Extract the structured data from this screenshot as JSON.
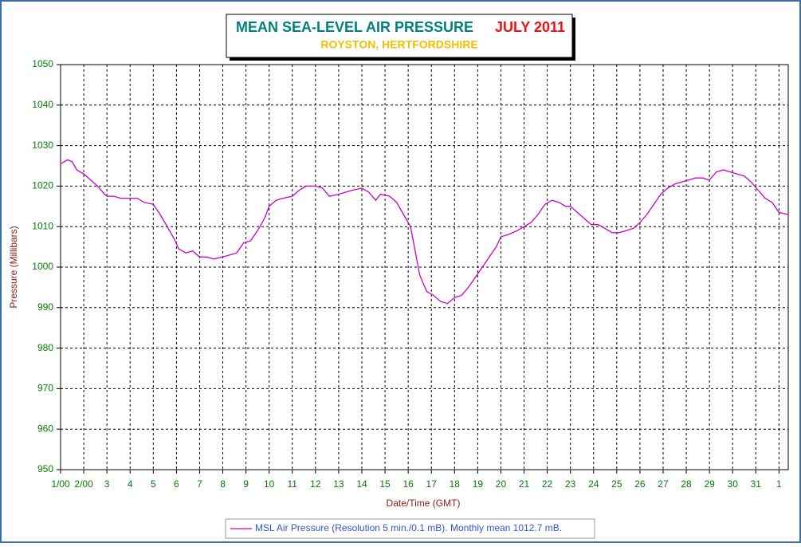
{
  "chart_data": {
    "type": "line",
    "title": "MEAN SEA-LEVEL AIR PRESSURE",
    "title_date": "JULY 2011",
    "subtitle": "ROYSTON, HERTFORDSHIRE",
    "xlabel": "Date/Time (GMT)",
    "ylabel": "Pressure (Millibars)",
    "xlim": [
      1,
      32.4
    ],
    "ylim": [
      950,
      1050
    ],
    "yticks": [
      950,
      960,
      970,
      980,
      990,
      1000,
      1010,
      1020,
      1030,
      1040,
      1050
    ],
    "xticks": [
      {
        "value": 1,
        "label": "1/00"
      },
      {
        "value": 2,
        "label": "2/00"
      },
      3,
      4,
      5,
      6,
      7,
      8,
      9,
      10,
      11,
      12,
      13,
      14,
      15,
      16,
      17,
      18,
      19,
      20,
      21,
      22,
      23,
      24,
      25,
      26,
      27,
      28,
      29,
      30,
      31,
      {
        "value": 32,
        "label": "1"
      }
    ],
    "grid": true,
    "legend": "bottom",
    "x": [
      1,
      1.3,
      1.5,
      1.7,
      2,
      2.3,
      2.6,
      2.9,
      3,
      3.3,
      3.6,
      4,
      4.3,
      4.6,
      5,
      5.3,
      5.6,
      5.9,
      6.1,
      6.4,
      6.7,
      7,
      7.3,
      7.6,
      8,
      8.3,
      8.6,
      8.9,
      9.2,
      9.5,
      9.8,
      10,
      10.3,
      10.6,
      11,
      11.3,
      11.6,
      12,
      12.3,
      12.6,
      13,
      13.3,
      13.6,
      14,
      14.3,
      14.6,
      14.8,
      15.2,
      15.5,
      15.8,
      16.1,
      16.3,
      16.5,
      16.8,
      17.1,
      17.4,
      17.7,
      18,
      18.3,
      18.6,
      18.9,
      19.2,
      19.5,
      19.8,
      20,
      20.3,
      20.7,
      21,
      21.3,
      21.6,
      21.9,
      22.2,
      22.5,
      22.8,
      23,
      23.3,
      23.6,
      23.9,
      24.2,
      24.5,
      24.8,
      25.1,
      25.4,
      25.7,
      26,
      26.3,
      26.6,
      26.9,
      27.2,
      27.5,
      27.8,
      28.1,
      28.4,
      28.7,
      29,
      29.3,
      29.6,
      29.9,
      30.2,
      30.5,
      30.8,
      31.1,
      31.4,
      31.7,
      32,
      32.4
    ],
    "series": [
      {
        "name": "MSL Air Pressure (Resolution 5 min./0.1 mB). Monthly mean 1012.7 mB.",
        "color": "#cc00cc",
        "values": [
          1025.5,
          1026.5,
          1026,
          1024,
          1023,
          1021.5,
          1020,
          1018,
          1017.5,
          1017.5,
          1017,
          1017,
          1017,
          1016,
          1015.5,
          1013,
          1010,
          1007,
          1004.5,
          1003.5,
          1004,
          1002.5,
          1002.5,
          1002,
          1002.5,
          1003,
          1003.5,
          1006,
          1006.5,
          1009,
          1012,
          1015,
          1016.5,
          1017,
          1017.5,
          1019,
          1020,
          1020,
          1019.5,
          1017.5,
          1018,
          1018.5,
          1019,
          1019.5,
          1018.5,
          1016.5,
          1018,
          1017.5,
          1016,
          1013,
          1010,
          1004,
          998,
          994,
          993,
          991.5,
          991,
          992.5,
          993,
          995,
          997.5,
          1000,
          1002.5,
          1005,
          1007.5,
          1008,
          1009,
          1010,
          1011,
          1013,
          1015.5,
          1016.5,
          1016,
          1015,
          1015,
          1013.5,
          1012,
          1010.5,
          1010.5,
          1009.5,
          1008.5,
          1008.5,
          1009,
          1009.5,
          1011,
          1013,
          1015.5,
          1018,
          1019.5,
          1020.5,
          1021,
          1021.5,
          1022,
          1022,
          1021.5,
          1023.5,
          1024,
          1023.5,
          1023,
          1022.5,
          1021,
          1019,
          1017,
          1016,
          1013.5,
          1013
        ]
      }
    ]
  }
}
